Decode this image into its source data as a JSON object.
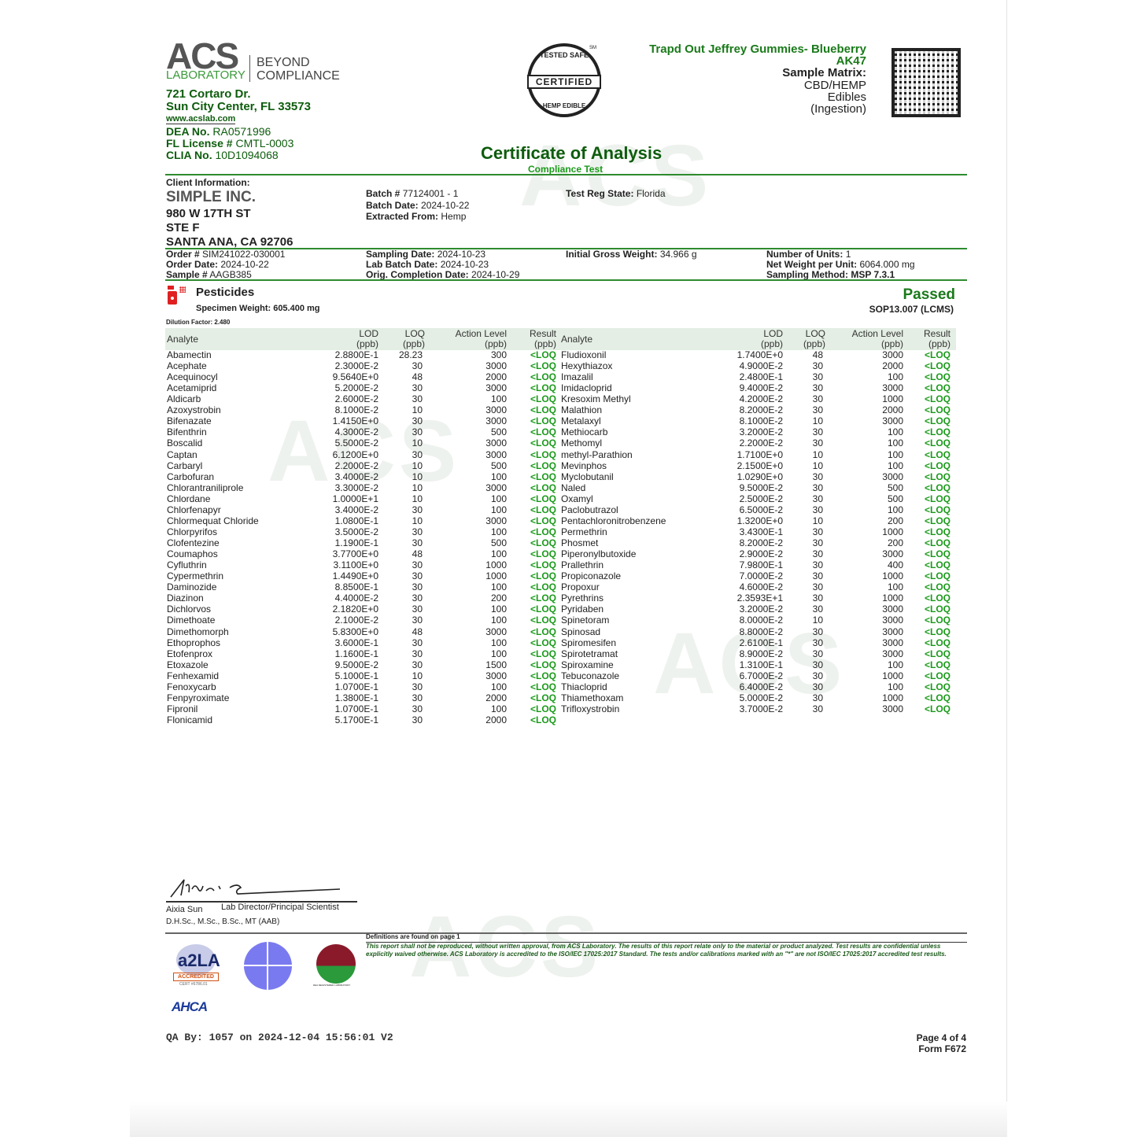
{
  "lab": {
    "logo_text": "ACS",
    "logo_sub": "LABORATORY",
    "tagline_1": "BEYOND",
    "tagline_2": "COMPLIANCE",
    "address_1": "721 Cortaro Dr.",
    "address_2": "Sun City Center, FL 33573",
    "website": "www.acslab.com",
    "dea_label": "DEA No.",
    "dea": "RA0571996",
    "fl_label": "FL License #",
    "fl": "CMTL-0003",
    "clia_label": "CLIA No.",
    "clia": "10D1094068"
  },
  "seal": {
    "top": "TESTED SAFE",
    "middle": "CERTIFIED",
    "bottom": "HEMP EDIBLE",
    "sm": "SM"
  },
  "product": {
    "name": "Trapd Out Jeffrey Gummies- Blueberry",
    "strain": "AK47",
    "matrix_label": "Sample Matrix:",
    "matrix_1": "CBD/HEMP",
    "matrix_2": "Edibles",
    "matrix_3": "(Ingestion)"
  },
  "title": "Certificate of Analysis",
  "subtitle": "Compliance Test",
  "client": {
    "label": "Client Information:",
    "name": "SIMPLE INC.",
    "addr1": "980 W 17TH ST",
    "addr2": "STE F",
    "addr3": "SANTA ANA, CA 92706"
  },
  "batch": {
    "batch_label": "Batch #",
    "batch": "77124001 - 1",
    "batch_date_label": "Batch Date:",
    "batch_date": "2024-10-22",
    "extracted_label": "Extracted From:",
    "extracted": "Hemp",
    "state_label": "Test Reg State:",
    "state": "Florida"
  },
  "order": {
    "order_label": "Order #",
    "order": "SIM241022-030001",
    "order_date_label": "Order Date:",
    "order_date": "2024-10-22",
    "sample_label": "Sample #",
    "sample": "AAGB385",
    "sampling_date_label": "Sampling Date:",
    "sampling_date": "2024-10-23",
    "lab_batch_label": "Lab Batch Date:",
    "lab_batch": "2024-10-23",
    "completion_label": "Orig. Completion Date:",
    "completion": "2024-10-29",
    "gross_label": "Initial Gross Weight:",
    "gross": "34.966 g",
    "units_label": "Number of Units:",
    "units": "1",
    "net_label": "Net Weight per Unit:",
    "net": "6064.000 mg",
    "method_label": "Sampling Method:",
    "method": "MSP 7.3.1"
  },
  "section": {
    "title": "Pesticides",
    "specimen": "Specimen Weight: 605.400 mg",
    "dilution": "Dilution Factor: 2.480",
    "status": "Passed",
    "sop": "SOP13.007 (LCMS)",
    "icon": "spray-bottle-icon"
  },
  "columns": {
    "analyte": "Analyte",
    "lod": "LOD",
    "loq": "LOQ",
    "action": "Action Level",
    "result": "Result",
    "unit": "(ppb)"
  },
  "left_rows": [
    [
      "Abamectin",
      "2.8800E-1",
      "28.23",
      "300",
      "<LOQ"
    ],
    [
      "Acephate",
      "2.3000E-2",
      "30",
      "3000",
      "<LOQ"
    ],
    [
      "Acequinocyl",
      "9.5640E+0",
      "48",
      "2000",
      "<LOQ"
    ],
    [
      "Acetamiprid",
      "5.2000E-2",
      "30",
      "3000",
      "<LOQ"
    ],
    [
      "Aldicarb",
      "2.6000E-2",
      "30",
      "100",
      "<LOQ"
    ],
    [
      "Azoxystrobin",
      "8.1000E-2",
      "10",
      "3000",
      "<LOQ"
    ],
    [
      "Bifenazate",
      "1.4150E+0",
      "30",
      "3000",
      "<LOQ"
    ],
    [
      "Bifenthrin",
      "4.3000E-2",
      "30",
      "500",
      "<LOQ"
    ],
    [
      "Boscalid",
      "5.5000E-2",
      "10",
      "3000",
      "<LOQ"
    ],
    [
      "Captan",
      "6.1200E+0",
      "30",
      "3000",
      "<LOQ"
    ],
    [
      "Carbaryl",
      "2.2000E-2",
      "10",
      "500",
      "<LOQ"
    ],
    [
      "Carbofuran",
      "3.4000E-2",
      "10",
      "100",
      "<LOQ"
    ],
    [
      "Chlorantraniliprole",
      "3.3000E-2",
      "10",
      "3000",
      "<LOQ"
    ],
    [
      "Chlordane",
      "1.0000E+1",
      "10",
      "100",
      "<LOQ"
    ],
    [
      "Chlorfenapyr",
      "3.4000E-2",
      "30",
      "100",
      "<LOQ"
    ],
    [
      "Chlormequat Chloride",
      "1.0800E-1",
      "10",
      "3000",
      "<LOQ"
    ],
    [
      "Chlorpyrifos",
      "3.5000E-2",
      "30",
      "100",
      "<LOQ"
    ],
    [
      "Clofentezine",
      "1.1900E-1",
      "30",
      "500",
      "<LOQ"
    ],
    [
      "Coumaphos",
      "3.7700E+0",
      "48",
      "100",
      "<LOQ"
    ],
    [
      "Cyfluthrin",
      "3.1100E+0",
      "30",
      "1000",
      "<LOQ"
    ],
    [
      "Cypermethrin",
      "1.4490E+0",
      "30",
      "1000",
      "<LOQ"
    ],
    [
      "Daminozide",
      "8.8500E-1",
      "30",
      "100",
      "<LOQ"
    ],
    [
      "Diazinon",
      "4.4000E-2",
      "30",
      "200",
      "<LOQ"
    ],
    [
      "Dichlorvos",
      "2.1820E+0",
      "30",
      "100",
      "<LOQ"
    ],
    [
      "Dimethoate",
      "2.1000E-2",
      "30",
      "100",
      "<LOQ"
    ],
    [
      "Dimethomorph",
      "5.8300E+0",
      "48",
      "3000",
      "<LOQ"
    ],
    [
      "Ethoprophos",
      "3.6000E-1",
      "30",
      "100",
      "<LOQ"
    ],
    [
      "Etofenprox",
      "1.1600E-1",
      "30",
      "100",
      "<LOQ"
    ],
    [
      "Etoxazole",
      "9.5000E-2",
      "30",
      "1500",
      "<LOQ"
    ],
    [
      "Fenhexamid",
      "5.1000E-1",
      "10",
      "3000",
      "<LOQ"
    ],
    [
      "Fenoxycarb",
      "1.0700E-1",
      "30",
      "100",
      "<LOQ"
    ],
    [
      "Fenpyroximate",
      "1.3800E-1",
      "30",
      "2000",
      "<LOQ"
    ],
    [
      "Fipronil",
      "1.0700E-1",
      "30",
      "100",
      "<LOQ"
    ],
    [
      "Flonicamid",
      "5.1700E-1",
      "30",
      "2000",
      "<LOQ"
    ]
  ],
  "right_rows": [
    [
      "Fludioxonil",
      "1.7400E+0",
      "48",
      "3000",
      "<LOQ"
    ],
    [
      "Hexythiazox",
      "4.9000E-2",
      "30",
      "2000",
      "<LOQ"
    ],
    [
      "Imazalil",
      "2.4800E-1",
      "30",
      "100",
      "<LOQ"
    ],
    [
      "Imidacloprid",
      "9.4000E-2",
      "30",
      "3000",
      "<LOQ"
    ],
    [
      "Kresoxim Methyl",
      "4.2000E-2",
      "30",
      "1000",
      "<LOQ"
    ],
    [
      "Malathion",
      "8.2000E-2",
      "30",
      "2000",
      "<LOQ"
    ],
    [
      "Metalaxyl",
      "8.1000E-2",
      "10",
      "3000",
      "<LOQ"
    ],
    [
      "Methiocarb",
      "3.2000E-2",
      "30",
      "100",
      "<LOQ"
    ],
    [
      "Methomyl",
      "2.2000E-2",
      "30",
      "100",
      "<LOQ"
    ],
    [
      "methyl-Parathion",
      "1.7100E+0",
      "10",
      "100",
      "<LOQ"
    ],
    [
      "Mevinphos",
      "2.1500E+0",
      "10",
      "100",
      "<LOQ"
    ],
    [
      "Myclobutanil",
      "1.0290E+0",
      "30",
      "3000",
      "<LOQ"
    ],
    [
      "Naled",
      "9.5000E-2",
      "30",
      "500",
      "<LOQ"
    ],
    [
      "Oxamyl",
      "2.5000E-2",
      "30",
      "500",
      "<LOQ"
    ],
    [
      "Paclobutrazol",
      "6.5000E-2",
      "30",
      "100",
      "<LOQ"
    ],
    [
      "Pentachloronitrobenzene",
      "1.3200E+0",
      "10",
      "200",
      "<LOQ"
    ],
    [
      "Permethrin",
      "3.4300E-1",
      "30",
      "1000",
      "<LOQ"
    ],
    [
      "Phosmet",
      "8.2000E-2",
      "30",
      "200",
      "<LOQ"
    ],
    [
      "Piperonylbutoxide",
      "2.9000E-2",
      "30",
      "3000",
      "<LOQ"
    ],
    [
      "Prallethrin",
      "7.9800E-1",
      "30",
      "400",
      "<LOQ"
    ],
    [
      "Propiconazole",
      "7.0000E-2",
      "30",
      "1000",
      "<LOQ"
    ],
    [
      "Propoxur",
      "4.6000E-2",
      "30",
      "100",
      "<LOQ"
    ],
    [
      "Pyrethrins",
      "2.3593E+1",
      "30",
      "1000",
      "<LOQ"
    ],
    [
      "Pyridaben",
      "3.2000E-2",
      "30",
      "3000",
      "<LOQ"
    ],
    [
      "Spinetoram",
      "8.0000E-2",
      "10",
      "3000",
      "<LOQ"
    ],
    [
      "Spinosad",
      "8.8000E-2",
      "30",
      "3000",
      "<LOQ"
    ],
    [
      "Spiromesifen",
      "2.6100E-1",
      "30",
      "3000",
      "<LOQ"
    ],
    [
      "Spirotetramat",
      "8.9000E-2",
      "30",
      "3000",
      "<LOQ"
    ],
    [
      "Spiroxamine",
      "1.3100E-1",
      "30",
      "100",
      "<LOQ"
    ],
    [
      "Tebuconazole",
      "6.7000E-2",
      "30",
      "1000",
      "<LOQ"
    ],
    [
      "Thiacloprid",
      "6.4000E-2",
      "30",
      "100",
      "<LOQ"
    ],
    [
      "Thiamethoxam",
      "5.0000E-2",
      "30",
      "1000",
      "<LOQ"
    ],
    [
      "Trifloxystrobin",
      "3.7000E-2",
      "30",
      "3000",
      "<LOQ"
    ]
  ],
  "signature": {
    "name": "Aixia Sun",
    "title": "Lab Director/Principal Scientist",
    "credentials": "D.H.Sc., M.Sc., B.Sc., MT (AAB)"
  },
  "footer": {
    "definitions": "Definitions are found on page 1",
    "disclaimer": "This report shall not be reproduced, without written approval, from ACS Laboratory. The results of this report relate only to the material or product analyzed. Test results are confidential unless explicitly waived otherwise. ACS Laboratory is accredited to the ISO/IEC 17025:2017 Standard. The tests and/or calibrations marked with an \"*\" are not ISO/IEC 17025:2017 accredited test results.",
    "qa": "QA By: 1057 on 2024-12-04 15:56:01 V2",
    "page": "Page 4 of 4",
    "form": "Form F672",
    "a2la": "ACCREDITED",
    "a2la_cert": "CERT #6786.01",
    "ahca": "AHCA",
    "dea_badge": "DEA REGISTERED LABORATORY"
  },
  "colors": {
    "green": "#1a7a1a",
    "loq": "#1a9a1a",
    "header_band": "#e4eee4",
    "accent_red": "#e02020"
  }
}
